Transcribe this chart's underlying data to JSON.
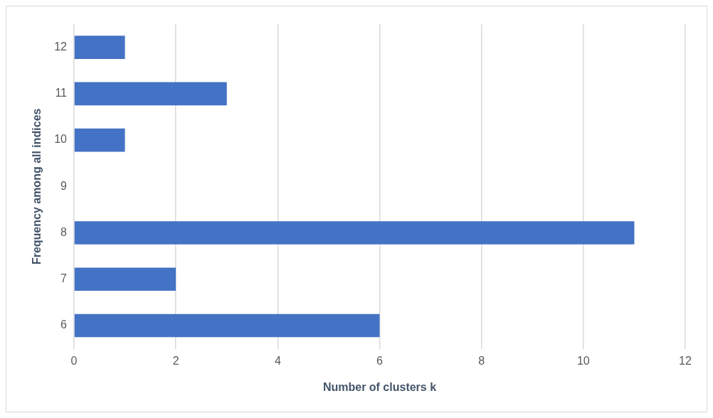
{
  "chart_data": {
    "type": "bar",
    "orientation": "horizontal",
    "xlabel": "Number of clusters k",
    "ylabel": "Frequency among all indices",
    "categories": [
      "12",
      "11",
      "10",
      "9",
      "8",
      "7",
      "6"
    ],
    "values": [
      1,
      3,
      1,
      0,
      11,
      2,
      6
    ],
    "color": "#4472c4",
    "xlim": [
      0,
      12
    ],
    "xticks": [
      0,
      2,
      4,
      6,
      8,
      10,
      12
    ],
    "grid": "x",
    "legend": false
  }
}
